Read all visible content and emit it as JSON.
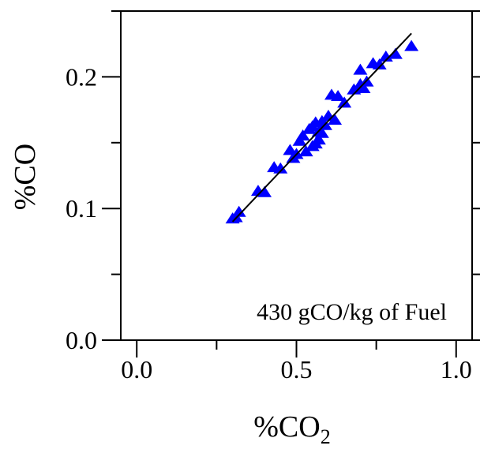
{
  "chart_data": {
    "type": "scatter",
    "title": "",
    "xlabel_main": "%CO",
    "xlabel_sub": "2",
    "ylabel": "%CO",
    "xlim": [
      -0.05,
      1.05
    ],
    "ylim": [
      0.0,
      0.25
    ],
    "x_ticks": [
      0.0,
      0.5,
      1.0
    ],
    "x_tick_labels": [
      "0.0",
      "0.5",
      "1.0"
    ],
    "y_ticks": [
      0.0,
      0.1,
      0.2
    ],
    "y_tick_labels": [
      "0.0",
      "0.1",
      "0.2"
    ],
    "grid": false,
    "legend": "none",
    "annotation": "430 gCO/kg of Fuel",
    "colors": {
      "points": "#0000ff",
      "fit_line": "#000000"
    },
    "series": [
      {
        "marker": "triangle",
        "x": [
          0.3,
          0.31,
          0.32,
          0.38,
          0.4,
          0.43,
          0.45,
          0.48,
          0.49,
          0.5,
          0.51,
          0.52,
          0.53,
          0.54,
          0.55,
          0.55,
          0.56,
          0.56,
          0.57,
          0.57,
          0.58,
          0.58,
          0.59,
          0.6,
          0.61,
          0.62,
          0.63,
          0.65,
          0.68,
          0.7,
          0.7,
          0.71,
          0.72,
          0.74,
          0.76,
          0.78,
          0.81,
          0.86
        ],
        "y": [
          0.092,
          0.093,
          0.097,
          0.113,
          0.112,
          0.131,
          0.13,
          0.144,
          0.138,
          0.141,
          0.151,
          0.155,
          0.143,
          0.16,
          0.147,
          0.162,
          0.149,
          0.165,
          0.152,
          0.158,
          0.157,
          0.166,
          0.163,
          0.17,
          0.186,
          0.167,
          0.185,
          0.18,
          0.19,
          0.194,
          0.205,
          0.191,
          0.196,
          0.21,
          0.209,
          0.215,
          0.217,
          0.223
        ]
      }
    ],
    "fit_line": {
      "x": [
        0.3,
        0.86
      ],
      "y": [
        0.09,
        0.233
      ]
    }
  }
}
